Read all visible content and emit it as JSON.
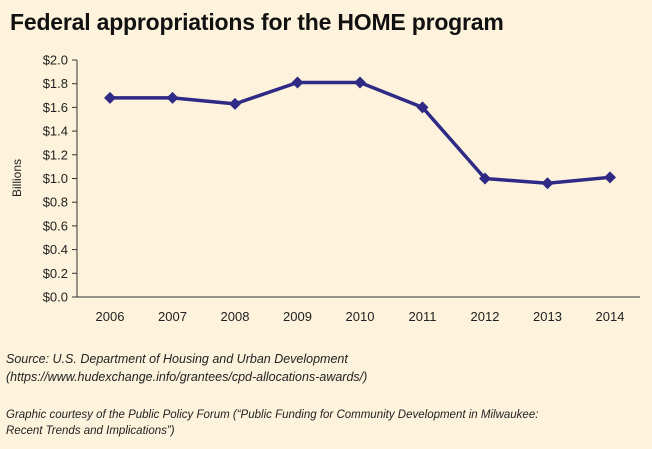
{
  "title": "Federal appropriations for the HOME program",
  "source": {
    "line1": "Source: U.S. Department of Housing and Urban Development",
    "line2": "(https://www.hudexchange.info/grantees/cpd-allocations-awards/)"
  },
  "credit": {
    "line1": "Graphic courtesy of the Public Policy Forum (“Public Funding for Community Development in Milwaukee:",
    "line2": "Recent Trends and Implications”)"
  },
  "colors": {
    "background": "#fdf3dc",
    "series": "#2e2a86",
    "axis": "#333333"
  },
  "chart_data": {
    "type": "line",
    "title": "Federal appropriations for the HOME program",
    "xlabel": "",
    "ylabel": "Billions",
    "x": [
      "2006",
      "2007",
      "2008",
      "2009",
      "2010",
      "2011",
      "2012",
      "2013",
      "2014"
    ],
    "series": [
      {
        "values": [
          1.68,
          1.68,
          1.63,
          1.81,
          1.81,
          1.6,
          1.0,
          0.96,
          1.01
        ]
      }
    ],
    "ylim": [
      0,
      2.0
    ],
    "yticks": [
      0,
      0.2,
      0.4,
      0.6,
      0.8,
      1.0,
      1.2,
      1.4,
      1.6,
      1.8,
      2.0
    ],
    "ytick_labels": [
      "$0.0",
      "$0.2",
      "$0.4",
      "$0.6",
      "$0.8",
      "$1.0",
      "$1.2",
      "$1.4",
      "$1.6",
      "$1.8",
      "$2.0"
    ],
    "marker": "diamond",
    "grid": false
  }
}
